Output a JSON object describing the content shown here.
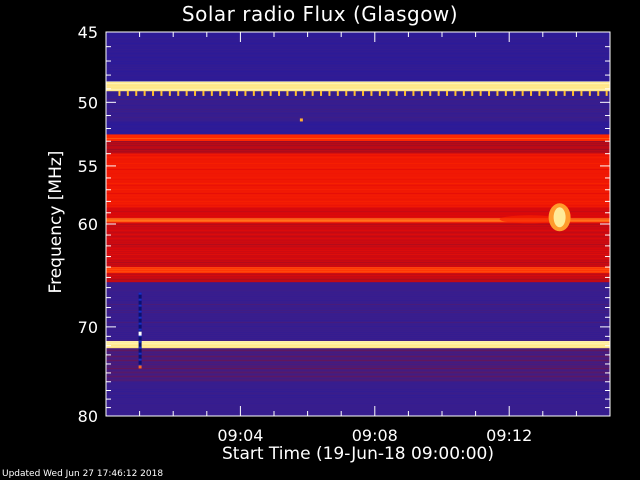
{
  "title": "Solar radio Flux (Glasgow)",
  "footer": {
    "updated": "Updated Wed Jun 27 17:46:12 2018"
  },
  "chart_data": {
    "type": "heatmap",
    "title": "Solar radio Flux (Glasgow)",
    "xlabel": "Start Time (19-Jun-18 09:00:00)",
    "ylabel": "Frequency [MHz]",
    "x_ticks": [
      "09:04",
      "09:08",
      "09:12"
    ],
    "x_tick_values_min": [
      4,
      8,
      12
    ],
    "x_range_min": [
      0,
      15
    ],
    "y_ticks": [
      45,
      50,
      55,
      60,
      70,
      80
    ],
    "y_range_mhz": [
      45,
      80
    ],
    "y_scale": "log",
    "colormap": [
      "#2a1a9a",
      "#3c1e8a",
      "#8a0f2a",
      "#e20808",
      "#ff2a00",
      "#ffd040",
      "#ffffd8"
    ],
    "background_level": 0.15,
    "bands": [
      {
        "f1": 45.0,
        "f2": 45.5,
        "level": 0.04
      },
      {
        "f1": 45.5,
        "f2": 48.5,
        "level": 0.05
      },
      {
        "f1": 48.5,
        "f2": 49.2,
        "level": 0.92
      },
      {
        "f1": 49.2,
        "f2": 51.5,
        "level": 0.12
      },
      {
        "f1": 51.5,
        "f2": 52.5,
        "level": 0.03
      },
      {
        "f1": 52.5,
        "f2": 53.0,
        "level": 0.66
      },
      {
        "f1": 53.0,
        "f2": 54.0,
        "level": 0.42
      },
      {
        "f1": 54.0,
        "f2": 58.5,
        "level": 0.58
      },
      {
        "f1": 58.5,
        "f2": 59.5,
        "level": 0.48
      },
      {
        "f1": 59.5,
        "f2": 59.9,
        "level": 0.72
      },
      {
        "f1": 59.9,
        "f2": 64.0,
        "level": 0.46
      },
      {
        "f1": 64.0,
        "f2": 64.6,
        "level": 0.68
      },
      {
        "f1": 64.6,
        "f2": 65.5,
        "level": 0.44
      },
      {
        "f1": 65.5,
        "f2": 71.5,
        "level": 0.14
      },
      {
        "f1": 71.5,
        "f2": 72.3,
        "level": 0.93
      },
      {
        "f1": 72.3,
        "f2": 76.0,
        "level": 0.2
      },
      {
        "f1": 76.0,
        "f2": 80.0,
        "level": 0.12
      }
    ],
    "events": [
      {
        "type": "burst",
        "t_min": 13.5,
        "f_mhz": 59.4,
        "level": 0.93
      },
      {
        "type": "interference_column",
        "t_min": 1.0,
        "f_from_mhz": 66.5,
        "f_to_mhz": 74.5
      },
      {
        "type": "spot",
        "t_min": 5.8,
        "f_mhz": 51.3,
        "level": 0.8
      },
      {
        "type": "periodic_ticks",
        "f_mhz": 49.3,
        "t_from_min": 0.4,
        "t_to_min": 14.9,
        "spacing_min": 0.25
      }
    ]
  }
}
